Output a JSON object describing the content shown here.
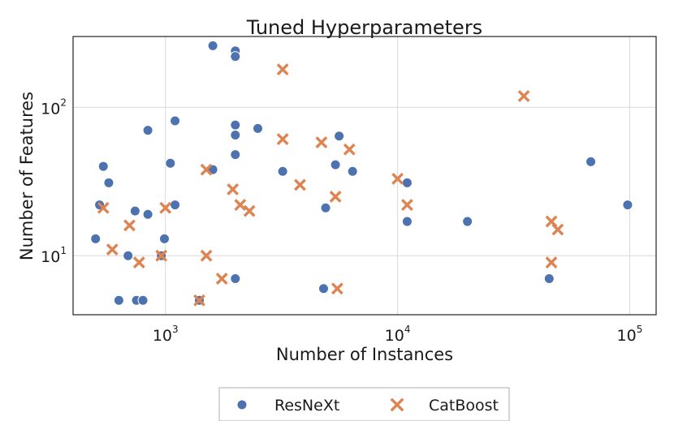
{
  "chart_data": {
    "type": "scatter",
    "title": "Tuned Hyperparameters",
    "xlabel": "Number of Instances",
    "ylabel": "Number of Features",
    "xscale": "log",
    "yscale": "log",
    "xlim": [
      400,
      130000
    ],
    "ylim": [
      4.0,
      300
    ],
    "x_ticks": [
      {
        "base": "10",
        "exp": "3",
        "value": 1000
      },
      {
        "base": "10",
        "exp": "4",
        "value": 10000
      },
      {
        "base": "10",
        "exp": "5",
        "value": 100000
      }
    ],
    "y_ticks": [
      {
        "base": "10",
        "exp": "1",
        "value": 10
      },
      {
        "base": "10",
        "exp": "2",
        "value": 100
      }
    ],
    "grid": true,
    "legend_position": "below",
    "series": [
      {
        "name": "ResNeXt",
        "color": "#4c72b0",
        "marker": "circle",
        "points": [
          [
            1600,
            260
          ],
          [
            2000,
            240
          ],
          [
            2000,
            220
          ],
          [
            2000,
            76
          ],
          [
            2000,
            65
          ],
          [
            2500,
            72
          ],
          [
            2000,
            48
          ],
          [
            1600,
            38
          ],
          [
            3200,
            37
          ],
          [
            5600,
            64
          ],
          [
            5400,
            41
          ],
          [
            6400,
            37
          ],
          [
            1100,
            81
          ],
          [
            840,
            70
          ],
          [
            1050,
            42
          ],
          [
            540,
            40
          ],
          [
            570,
            31
          ],
          [
            520,
            22
          ],
          [
            1100,
            22
          ],
          [
            740,
            20
          ],
          [
            840,
            19
          ],
          [
            500,
            13
          ],
          [
            990,
            13
          ],
          [
            690,
            10
          ],
          [
            960,
            10
          ],
          [
            2000,
            7
          ],
          [
            630,
            5
          ],
          [
            750,
            5
          ],
          [
            800,
            5
          ],
          [
            1400,
            5
          ],
          [
            4800,
            6
          ],
          [
            4900,
            21
          ],
          [
            11000,
            31
          ],
          [
            11000,
            17
          ],
          [
            20000,
            17
          ],
          [
            45000,
            7
          ],
          [
            68000,
            43
          ],
          [
            98000,
            22
          ]
        ]
      },
      {
        "name": "CatBoost",
        "color": "#dd8452",
        "marker": "x",
        "points": [
          [
            3200,
            180
          ],
          [
            3200,
            61
          ],
          [
            4700,
            58
          ],
          [
            6200,
            52
          ],
          [
            1500,
            38
          ],
          [
            1950,
            28
          ],
          [
            3800,
            30
          ],
          [
            5400,
            25
          ],
          [
            2100,
            22
          ],
          [
            2300,
            20
          ],
          [
            540,
            21
          ],
          [
            1000,
            21
          ],
          [
            700,
            16
          ],
          [
            590,
            11
          ],
          [
            770,
            9
          ],
          [
            960,
            10
          ],
          [
            1500,
            10
          ],
          [
            1750,
            7
          ],
          [
            1400,
            5
          ],
          [
            5500,
            6
          ],
          [
            10000,
            33
          ],
          [
            11000,
            22
          ],
          [
            35000,
            119
          ],
          [
            46000,
            17
          ],
          [
            49000,
            15
          ],
          [
            46000,
            9
          ]
        ]
      }
    ]
  }
}
